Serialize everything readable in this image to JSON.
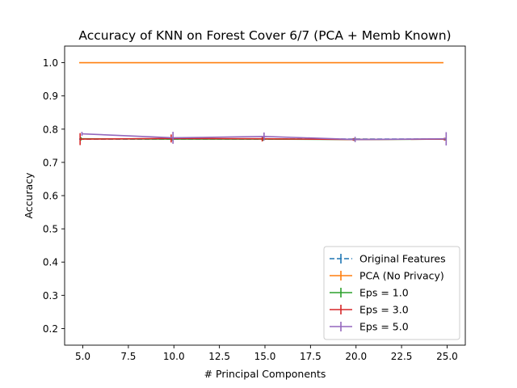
{
  "chart_data": {
    "type": "line",
    "title": "Accuracy of KNN on Forest Cover 6/7 (PCA + Memb Known)",
    "xlabel": "# Principal Components",
    "ylabel": "Accuracy",
    "xlim": [
      4.0,
      26.0
    ],
    "ylim": [
      0.15,
      1.05
    ],
    "xticks": [
      "5.0",
      "7.5",
      "10.0",
      "12.5",
      "15.0",
      "17.5",
      "20.0",
      "22.5",
      "25.0"
    ],
    "xtick_values": [
      5.0,
      7.5,
      10.0,
      12.5,
      15.0,
      17.5,
      20.0,
      22.5,
      25.0
    ],
    "yticks": [
      "0.2",
      "0.3",
      "0.4",
      "0.5",
      "0.6",
      "0.7",
      "0.8",
      "0.9",
      "1.0"
    ],
    "ytick_values": [
      0.2,
      0.3,
      0.4,
      0.5,
      0.6,
      0.7,
      0.8,
      0.9,
      1.0
    ],
    "grid": false,
    "legend_position": "lower-right",
    "series": [
      {
        "name": "Original Features",
        "color": "#1f77b4",
        "dashed": true,
        "x": [
          4.8,
          24.8
        ],
        "y": [
          0.77,
          0.77
        ],
        "err": [
          0.0,
          0.0
        ]
      },
      {
        "name": "PCA (No Privacy)",
        "color": "#ff7f0e",
        "dashed": false,
        "x": [
          4.8,
          24.8
        ],
        "y": [
          1.0,
          1.0
        ],
        "err": [
          0.0,
          0.0
        ]
      },
      {
        "name": "Eps = 1.0",
        "color": "#2ca02c",
        "dashed": false,
        "x": [
          4.9,
          9.9,
          14.9,
          19.9,
          24.9
        ],
        "y": [
          0.771,
          0.77,
          0.77,
          0.769,
          0.77
        ],
        "err": [
          0.005,
          0.004,
          0.005,
          0.004,
          0.004
        ]
      },
      {
        "name": "Eps = 3.0",
        "color": "#d62728",
        "dashed": false,
        "x": [
          4.85,
          9.85,
          14.85,
          19.85,
          24.85
        ],
        "y": [
          0.77,
          0.772,
          0.771,
          0.769,
          0.77
        ],
        "err": [
          0.018,
          0.012,
          0.008,
          0.004,
          0.004
        ]
      },
      {
        "name": "Eps = 5.0",
        "color": "#9467bd",
        "dashed": false,
        "x": [
          4.95,
          9.95,
          14.95,
          19.95,
          24.95
        ],
        "y": [
          0.786,
          0.774,
          0.778,
          0.769,
          0.771
        ],
        "err": [
          0.006,
          0.018,
          0.012,
          0.008,
          0.02
        ]
      }
    ]
  }
}
